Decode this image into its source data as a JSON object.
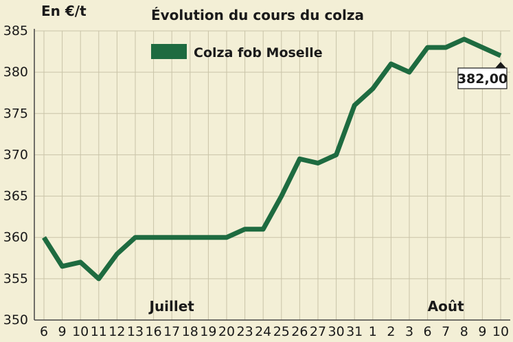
{
  "chart_data": {
    "type": "line",
    "title": "Évolution du cours du colza",
    "ylabel": "En €/t",
    "xlabel": "",
    "ylim": [
      350,
      385
    ],
    "yticks": [
      350,
      355,
      360,
      365,
      370,
      375,
      380,
      385
    ],
    "grid": true,
    "legend_position": "top-left",
    "categories": [
      "6",
      "9",
      "10",
      "11",
      "12",
      "13",
      "16",
      "17",
      "18",
      "19",
      "20",
      "23",
      "24",
      "25",
      "26",
      "27",
      "30",
      "31",
      "1",
      "2",
      "3",
      "6",
      "7",
      "8",
      "9",
      "10"
    ],
    "month_labels": [
      {
        "label": "Juillet",
        "category_index": 7
      },
      {
        "label": "Août",
        "category_index": 22
      }
    ],
    "series": [
      {
        "name": "Colza fob Moselle",
        "color": "#1e6b40",
        "values": [
          360,
          356.5,
          357,
          355,
          358,
          360,
          360,
          360,
          360,
          360,
          360,
          361,
          361,
          365,
          369.5,
          369,
          370,
          376,
          378,
          381,
          380,
          383,
          383,
          384,
          383,
          382
        ]
      }
    ],
    "annotation": {
      "text": "382,00",
      "category_index": 25
    }
  }
}
